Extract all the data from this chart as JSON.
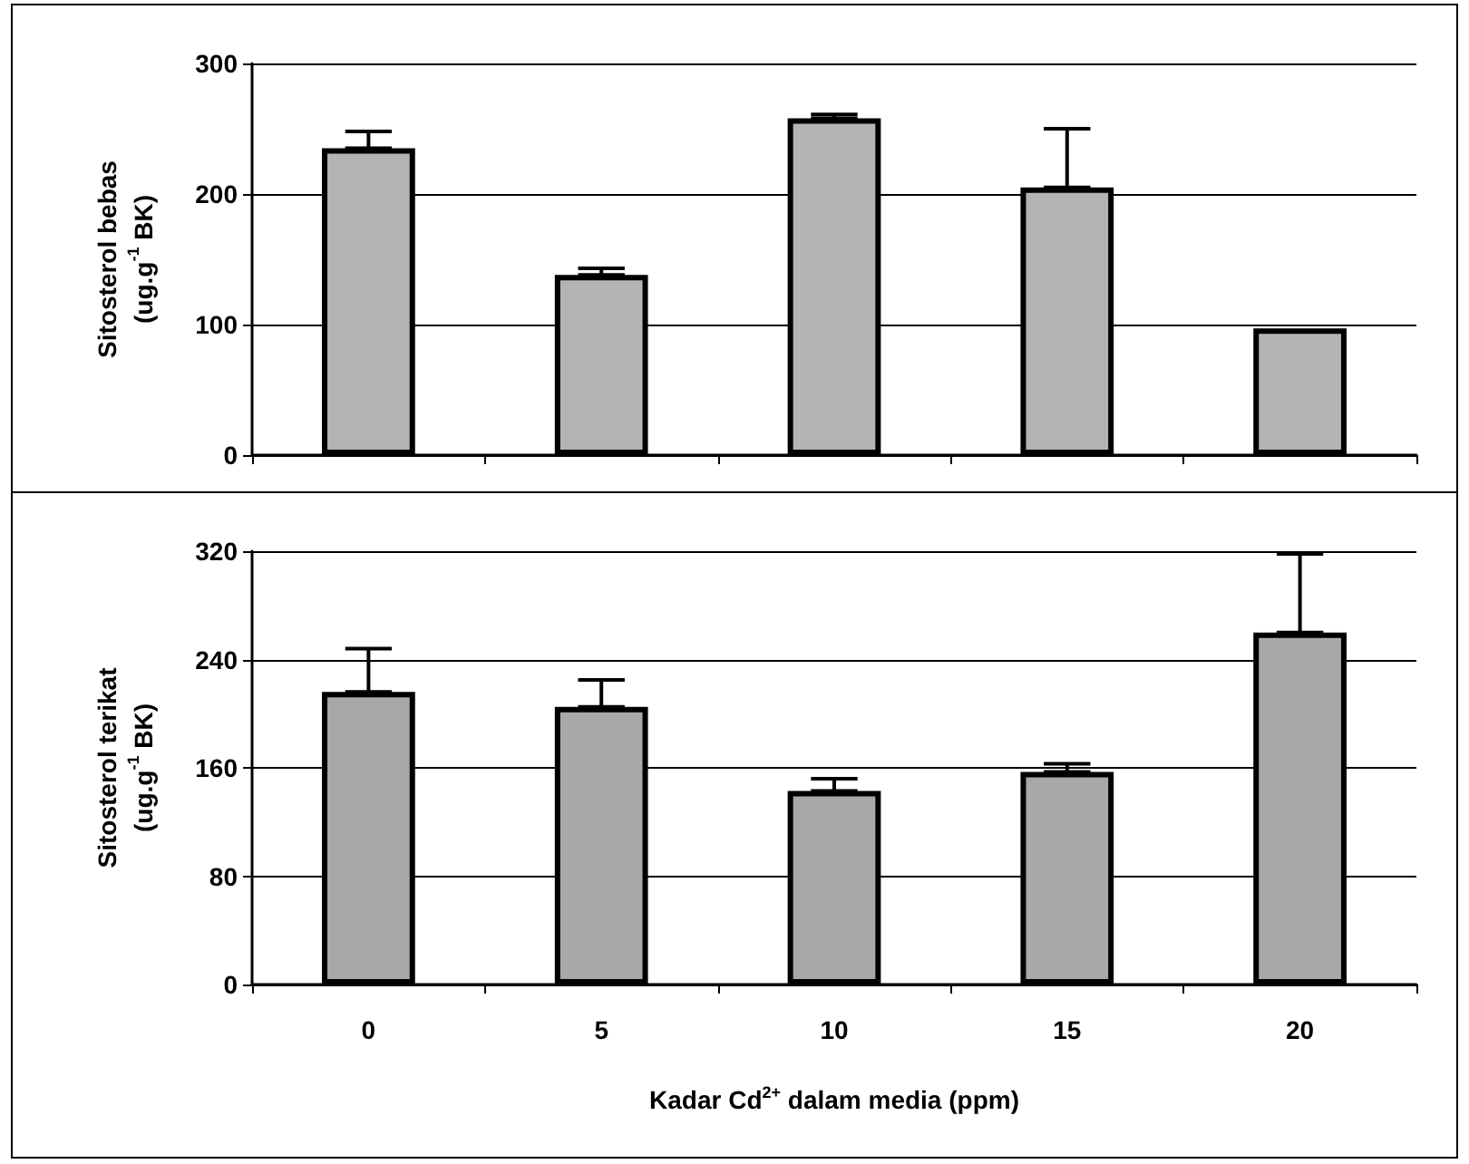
{
  "chart_data": [
    {
      "type": "bar",
      "ylabel": "Sitosterol bebas\n(ug.g$^{-1}$ BK)",
      "categories": [
        "0",
        "5",
        "10",
        "15",
        "20"
      ],
      "tick_labels": "y",
      "values": [
        235,
        138,
        258,
        205,
        97
      ],
      "errors": [
        [
          235,
          248
        ],
        [
          138,
          143
        ],
        [
          258,
          261
        ],
        [
          205,
          250
        ],
        null
      ],
      "color": "#b4b4b4",
      "ylim": [
        0,
        300
      ],
      "yticks": [
        0,
        100,
        200,
        300
      ],
      "grid": "y"
    },
    {
      "type": "bar",
      "ylabel": "Sitosterol terikat\n(ug.g$^{-1}$ BK)",
      "xlabel": "Kadar Cd$^{2+}$ dalam media (ppm)",
      "categories": [
        "0",
        "5",
        "10",
        "15",
        "20"
      ],
      "values": [
        216,
        205,
        143,
        157,
        260
      ],
      "errors": [
        [
          216,
          248
        ],
        [
          205,
          225
        ],
        [
          143,
          152
        ],
        [
          157,
          163
        ],
        [
          260,
          318
        ]
      ],
      "color": "#a8a8a8",
      "ylim": [
        0,
        320
      ],
      "yticks": [
        0,
        80,
        160,
        240,
        320
      ],
      "grid": "y"
    }
  ]
}
